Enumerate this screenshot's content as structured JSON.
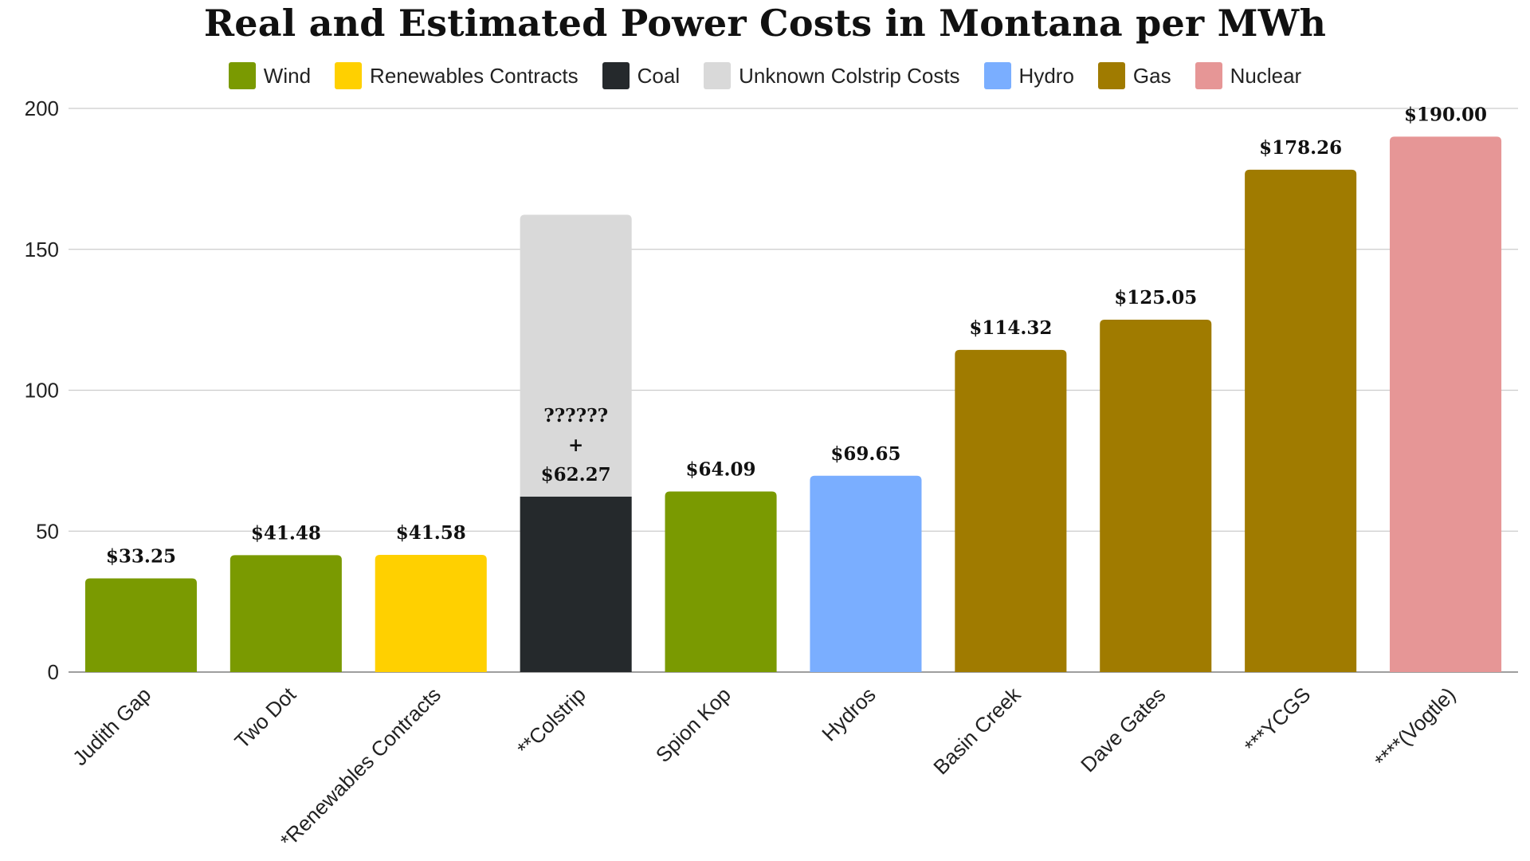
{
  "chart_data": {
    "type": "bar",
    "title": "Real and Estimated Power Costs in Montana per MWh",
    "xlabel": "",
    "ylabel": "",
    "ylim": [
      0,
      200
    ],
    "yticks": [
      0,
      50,
      100,
      150,
      200
    ],
    "grid": true,
    "legend_position": "top-center",
    "legend": [
      {
        "name": "Wind",
        "color": "#7a9a01"
      },
      {
        "name": "Renewables Contracts",
        "color": "#ffd000"
      },
      {
        "name": "Coal",
        "color": "#25292c"
      },
      {
        "name": "Unknown Colstrip Costs",
        "color": "#d9d9d9"
      },
      {
        "name": "Hydro",
        "color": "#7aaeff"
      },
      {
        "name": "Gas",
        "color": "#a07b00"
      },
      {
        "name": "Nuclear",
        "color": "#e69696"
      }
    ],
    "categories": [
      "Judith Gap",
      "Two Dot",
      "*Renewables Contracts",
      "**Colstrip",
      "Spion Kop",
      "Hydros",
      "Basin Creek",
      "Dave Gates",
      "***YCGS",
      "****(Vogtle)"
    ],
    "bars": [
      {
        "category": "Judith Gap",
        "segments": [
          {
            "series": "Wind",
            "value": 33.25
          }
        ],
        "label_lines": [
          "$33.25"
        ]
      },
      {
        "category": "Two Dot",
        "segments": [
          {
            "series": "Wind",
            "value": 41.48
          }
        ],
        "label_lines": [
          "$41.48"
        ]
      },
      {
        "category": "*Renewables Contracts",
        "segments": [
          {
            "series": "Renewables Contracts",
            "value": 41.58
          }
        ],
        "label_lines": [
          "$41.58"
        ]
      },
      {
        "category": "**Colstrip",
        "segments": [
          {
            "series": "Coal",
            "value": 62.27
          },
          {
            "series": "Unknown Colstrip Costs",
            "value": 100
          }
        ],
        "label_lines": [
          "??????",
          "+",
          "$62.27"
        ]
      },
      {
        "category": "Spion Kop",
        "segments": [
          {
            "series": "Wind",
            "value": 64.09
          }
        ],
        "label_lines": [
          "$64.09"
        ]
      },
      {
        "category": "Hydros",
        "segments": [
          {
            "series": "Hydro",
            "value": 69.65
          }
        ],
        "label_lines": [
          "$69.65"
        ]
      },
      {
        "category": "Basin Creek",
        "segments": [
          {
            "series": "Gas",
            "value": 114.32
          }
        ],
        "label_lines": [
          "$114.32"
        ]
      },
      {
        "category": "Dave Gates",
        "segments": [
          {
            "series": "Gas",
            "value": 125.05
          }
        ],
        "label_lines": [
          "$125.05"
        ]
      },
      {
        "category": "***YCGS",
        "segments": [
          {
            "series": "Gas",
            "value": 178.26
          }
        ],
        "label_lines": [
          "$178.26"
        ]
      },
      {
        "category": "****(Vogtle)",
        "segments": [
          {
            "series": "Nuclear",
            "value": 190.0
          }
        ],
        "label_lines": [
          "$190.00"
        ]
      }
    ]
  }
}
